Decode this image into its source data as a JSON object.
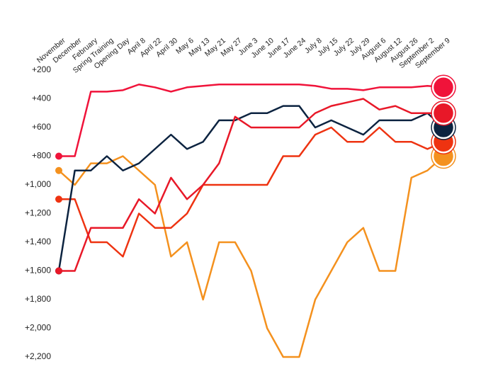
{
  "chart_data": {
    "type": "line",
    "categories": [
      "November",
      "December",
      "February",
      "Spring Training",
      "Opening Day",
      "April 8",
      "April 22",
      "April 30",
      "May 6",
      "May 13",
      "May 21",
      "May 27",
      "June 3",
      "June 10",
      "June 17",
      "June 24",
      "July 8",
      "July 15",
      "July 22",
      "July 29",
      "August 6",
      "August 12",
      "August 26",
      "September 2",
      "September 9"
    ],
    "ylim": [
      200,
      2200
    ],
    "y_inverted": true,
    "yticks": [
      {
        "value": 200,
        "label": "+200"
      },
      {
        "value": 400,
        "label": "+400"
      },
      {
        "value": 600,
        "label": "+600"
      },
      {
        "value": 800,
        "label": "+800"
      },
      {
        "value": 1000,
        "label": "+1,000"
      },
      {
        "value": 1200,
        "label": "+1,200"
      },
      {
        "value": 1400,
        "label": "+1,400"
      },
      {
        "value": 1600,
        "label": "+1,600"
      },
      {
        "value": 1800,
        "label": "+1,800"
      },
      {
        "value": 2000,
        "label": "+2,000"
      },
      {
        "value": 2200,
        "label": "+2,200"
      }
    ],
    "series": [
      {
        "color": "#f4911e",
        "values": [
          900,
          1000,
          850,
          850,
          800,
          900,
          1000,
          1500,
          1400,
          1800,
          1400,
          1400,
          1600,
          2000,
          2200,
          2200,
          1800,
          1600,
          1400,
          1300,
          1600,
          1600,
          950,
          900,
          800
        ]
      },
      {
        "color": "#ee3311",
        "values": [
          1100,
          1100,
          1400,
          1400,
          1500,
          1200,
          1300,
          1300,
          1200,
          1000,
          1000,
          1000,
          1000,
          1000,
          800,
          800,
          650,
          600,
          700,
          700,
          600,
          700,
          700,
          750,
          700
        ]
      },
      {
        "color": "#0c2340",
        "values": [
          1600,
          900,
          900,
          800,
          900,
          850,
          750,
          650,
          750,
          700,
          550,
          550,
          500,
          500,
          450,
          450,
          600,
          550,
          600,
          650,
          550,
          550,
          550,
          500,
          600
        ]
      },
      {
        "color": "#e81828",
        "values": [
          1600,
          1600,
          1300,
          1300,
          1300,
          1100,
          1200,
          950,
          1100,
          1000,
          850,
          525,
          600,
          600,
          600,
          600,
          500,
          450,
          425,
          400,
          475,
          450,
          500,
          500,
          500
        ]
      },
      {
        "color": "#f0133a",
        "values": [
          800,
          800,
          350,
          350,
          340,
          300,
          320,
          350,
          320,
          310,
          300,
          300,
          300,
          300,
          300,
          300,
          310,
          330,
          330,
          340,
          320,
          320,
          320,
          310,
          320
        ]
      }
    ]
  }
}
